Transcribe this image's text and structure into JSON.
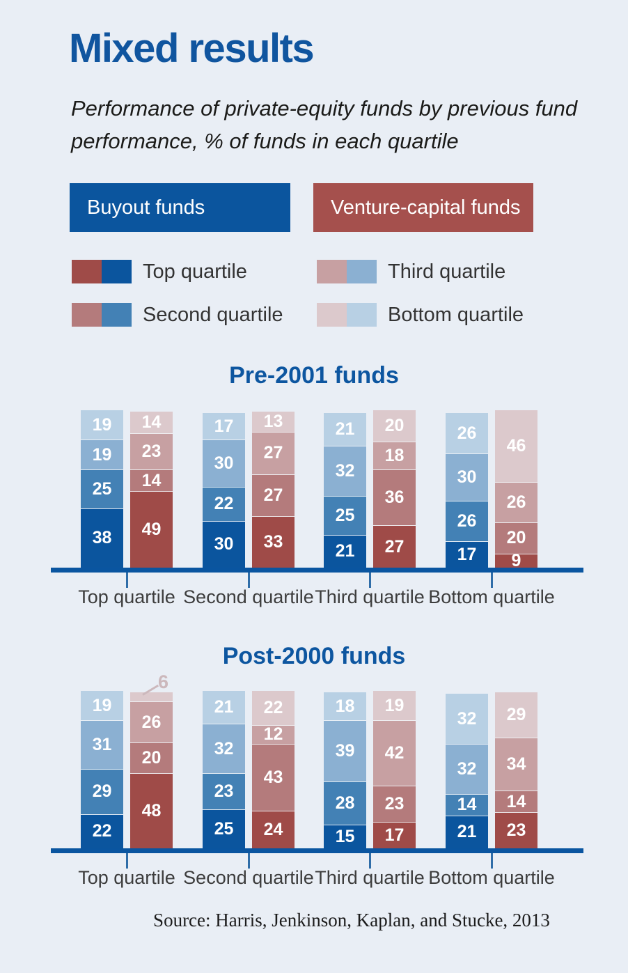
{
  "page": {
    "title": "Mixed results",
    "subtitle": "Performance of private-equity funds by previous fund performance, % of funds in each quartile",
    "source": "Source: Harris, Jenkinson, Kaplan, and Stucke, 2013"
  },
  "colors": {
    "background": "#e9eef5",
    "title_blue": "#10559f",
    "chart_title_blue": "#0d56a0",
    "axis_blue": "#0a55a0",
    "tick_blue": "#2f6da8",
    "category_label_gray": "#3d3d3d",
    "annotation_pink": "#ccb8bc",
    "buyout": {
      "top": "#0b559e",
      "second": "#4381b5",
      "third": "#8bb0d2",
      "bottom": "#b8d0e4"
    },
    "venture": {
      "top": "#9f4b48",
      "second": "#b47b7c",
      "third": "#c7a0a2",
      "bottom": "#dcc9cc"
    }
  },
  "series_headers": [
    {
      "key": "buyout",
      "label": "Buyout funds",
      "color": "#0b559e"
    },
    {
      "key": "venture",
      "label": "Venture-capital funds",
      "color": "#a5504d"
    }
  ],
  "legend": [
    {
      "key": "top",
      "label": "Top quartile"
    },
    {
      "key": "second",
      "label": "Second quartile"
    },
    {
      "key": "third",
      "label": "Third quartile"
    },
    {
      "key": "bottom",
      "label": "Bottom quartile"
    }
  ],
  "chart_data": [
    {
      "type": "bar",
      "stacked": true,
      "title": "Pre-2001 funds",
      "value_unit": "% of funds in each quartile",
      "categories": [
        "Top quartile",
        "Second quartile",
        "Third quartile",
        "Bottom quartile"
      ],
      "quartile_order_bottom_to_top": [
        "top",
        "second",
        "third",
        "bottom"
      ],
      "series": [
        {
          "key": "buyout",
          "name": "Buyout funds",
          "values": [
            [
              38,
              25,
              19,
              19
            ],
            [
              30,
              22,
              30,
              17
            ],
            [
              21,
              25,
              32,
              21
            ],
            [
              17,
              26,
              30,
              26
            ]
          ]
        },
        {
          "key": "venture",
          "name": "Venture-capital funds",
          "values": [
            [
              49,
              14,
              23,
              14
            ],
            [
              33,
              27,
              27,
              13
            ],
            [
              27,
              36,
              18,
              20
            ],
            [
              9,
              20,
              26,
              46
            ]
          ]
        }
      ],
      "annotation": null
    },
    {
      "type": "bar",
      "stacked": true,
      "title": "Post-2000 funds",
      "value_unit": "% of funds in each quartile",
      "categories": [
        "Top quartile",
        "Second quartile",
        "Third quartile",
        "Bottom quartile"
      ],
      "quartile_order_bottom_to_top": [
        "top",
        "second",
        "third",
        "bottom"
      ],
      "series": [
        {
          "key": "buyout",
          "name": "Buyout funds",
          "values": [
            [
              22,
              29,
              31,
              19
            ],
            [
              25,
              23,
              32,
              21
            ],
            [
              15,
              28,
              39,
              18
            ],
            [
              21,
              14,
              32,
              32
            ]
          ]
        },
        {
          "key": "venture",
          "name": "Venture-capital funds",
          "values": [
            [
              48,
              20,
              26,
              6
            ],
            [
              24,
              43,
              12,
              22
            ],
            [
              17,
              23,
              42,
              19
            ],
            [
              23,
              14,
              34,
              29
            ]
          ]
        }
      ],
      "annotation": {
        "series_key": "venture",
        "category_index": 0,
        "segment_index": 3,
        "label": "6"
      }
    }
  ]
}
